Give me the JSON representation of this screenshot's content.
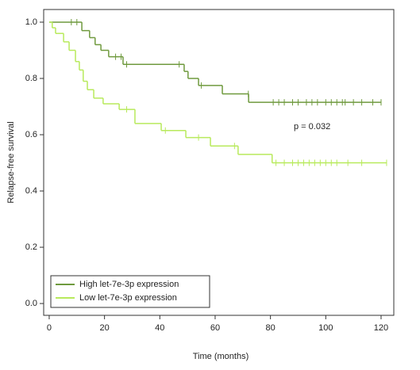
{
  "chart_data": {
    "type": "km",
    "xlabel": "Time (months)",
    "ylabel": "Relapse-free survival",
    "annotation": "p = 0.032",
    "xlim": [
      -2,
      124.6
    ],
    "ylim": [
      -0.042,
      1.045
    ],
    "xticks": [
      0,
      20,
      40,
      60,
      80,
      100,
      120
    ],
    "yticks": [
      {
        "value": 0,
        "label": "0.0"
      },
      0.2,
      0.4,
      0.6,
      0.8,
      {
        "value": 1,
        "label": "1.0"
      }
    ],
    "legend": "bottom-left",
    "series": [
      {
        "name": "High let-7e-3p expression",
        "color": "#6f9a3e",
        "x": [
          0,
          11.8,
          14.6,
          16.6,
          18.7,
          21.5,
          26.7,
          48.8,
          50.2,
          54,
          62.6,
          72.1,
          120
        ],
        "values": [
          1,
          0.97,
          0.945,
          0.92,
          0.9,
          0.877,
          0.85,
          0.825,
          0.8,
          0.775,
          0.745,
          0.715,
          0.715
        ],
        "censored": [
          8,
          10,
          24,
          26,
          28,
          47,
          55,
          72,
          81,
          83,
          85,
          88,
          90,
          93,
          95,
          97,
          100,
          102,
          104,
          106,
          107,
          110,
          113,
          117,
          120
        ]
      },
      {
        "name": "Low let-7e-3p expression",
        "color": "#b8ea5c",
        "x": [
          0,
          1.1,
          2.3,
          5.2,
          7.2,
          9.5,
          10.9,
          12.3,
          13.8,
          16.1,
          19.5,
          25.3,
          31,
          40.5,
          49.4,
          58.3,
          68.3,
          80.6,
          122
        ],
        "values": [
          1,
          0.98,
          0.96,
          0.93,
          0.9,
          0.86,
          0.83,
          0.79,
          0.76,
          0.73,
          0.71,
          0.69,
          0.64,
          0.615,
          0.59,
          0.56,
          0.53,
          0.5,
          0.5
        ],
        "censored": [
          28,
          42,
          54,
          67,
          82,
          85,
          88,
          90,
          92,
          94,
          96,
          98,
          100,
          102,
          104,
          108,
          113,
          122
        ]
      }
    ]
  }
}
